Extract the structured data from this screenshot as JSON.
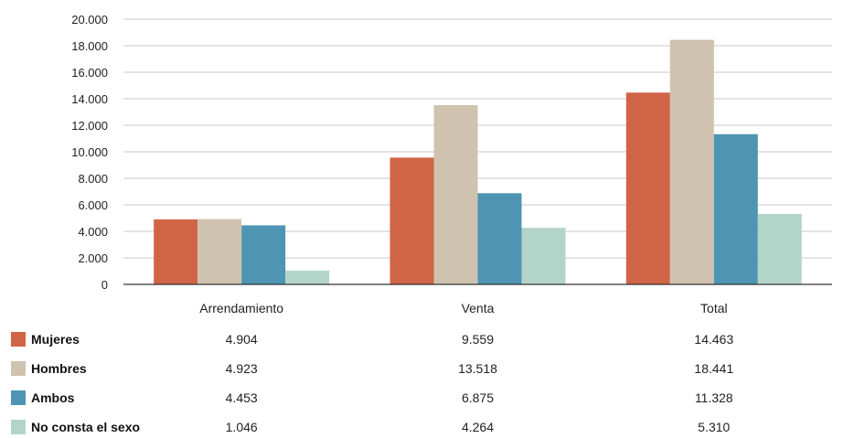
{
  "chart_data": {
    "type": "bar",
    "categories": [
      "Arrendamiento",
      "Venta",
      "Total"
    ],
    "series": [
      {
        "name": "Mujeres",
        "values": [
          4904,
          9559,
          14463
        ],
        "labels": [
          "4.904",
          "9.559",
          "14.463"
        ],
        "color": "#d06446"
      },
      {
        "name": "Hombres",
        "values": [
          4923,
          13518,
          18441
        ],
        "labels": [
          "4.923",
          "13.518",
          "18.441"
        ],
        "color": "#cfc3b0"
      },
      {
        "name": "Ambos",
        "values": [
          4453,
          6875,
          11328
        ],
        "labels": [
          "4.453",
          "6.875",
          "11.328"
        ],
        "color": "#4e95b3"
      },
      {
        "name": "No consta el sexo",
        "values": [
          1046,
          4264,
          5310
        ],
        "labels": [
          "1.046",
          "4.264",
          "5.310"
        ],
        "color": "#b3d5c9"
      }
    ],
    "yticks": [
      0,
      2000,
      4000,
      6000,
      8000,
      10000,
      12000,
      14000,
      16000,
      18000,
      20000
    ],
    "ytick_labels": [
      "0",
      "2.000",
      "4.000",
      "6.000",
      "8.000",
      "10.000",
      "12.000",
      "14.000",
      "16.000",
      "18.000",
      "20.000"
    ],
    "ylim": [
      0,
      20000
    ],
    "grid": true,
    "legend": "data-table-below",
    "title": "",
    "xlabel": "",
    "ylabel": ""
  }
}
